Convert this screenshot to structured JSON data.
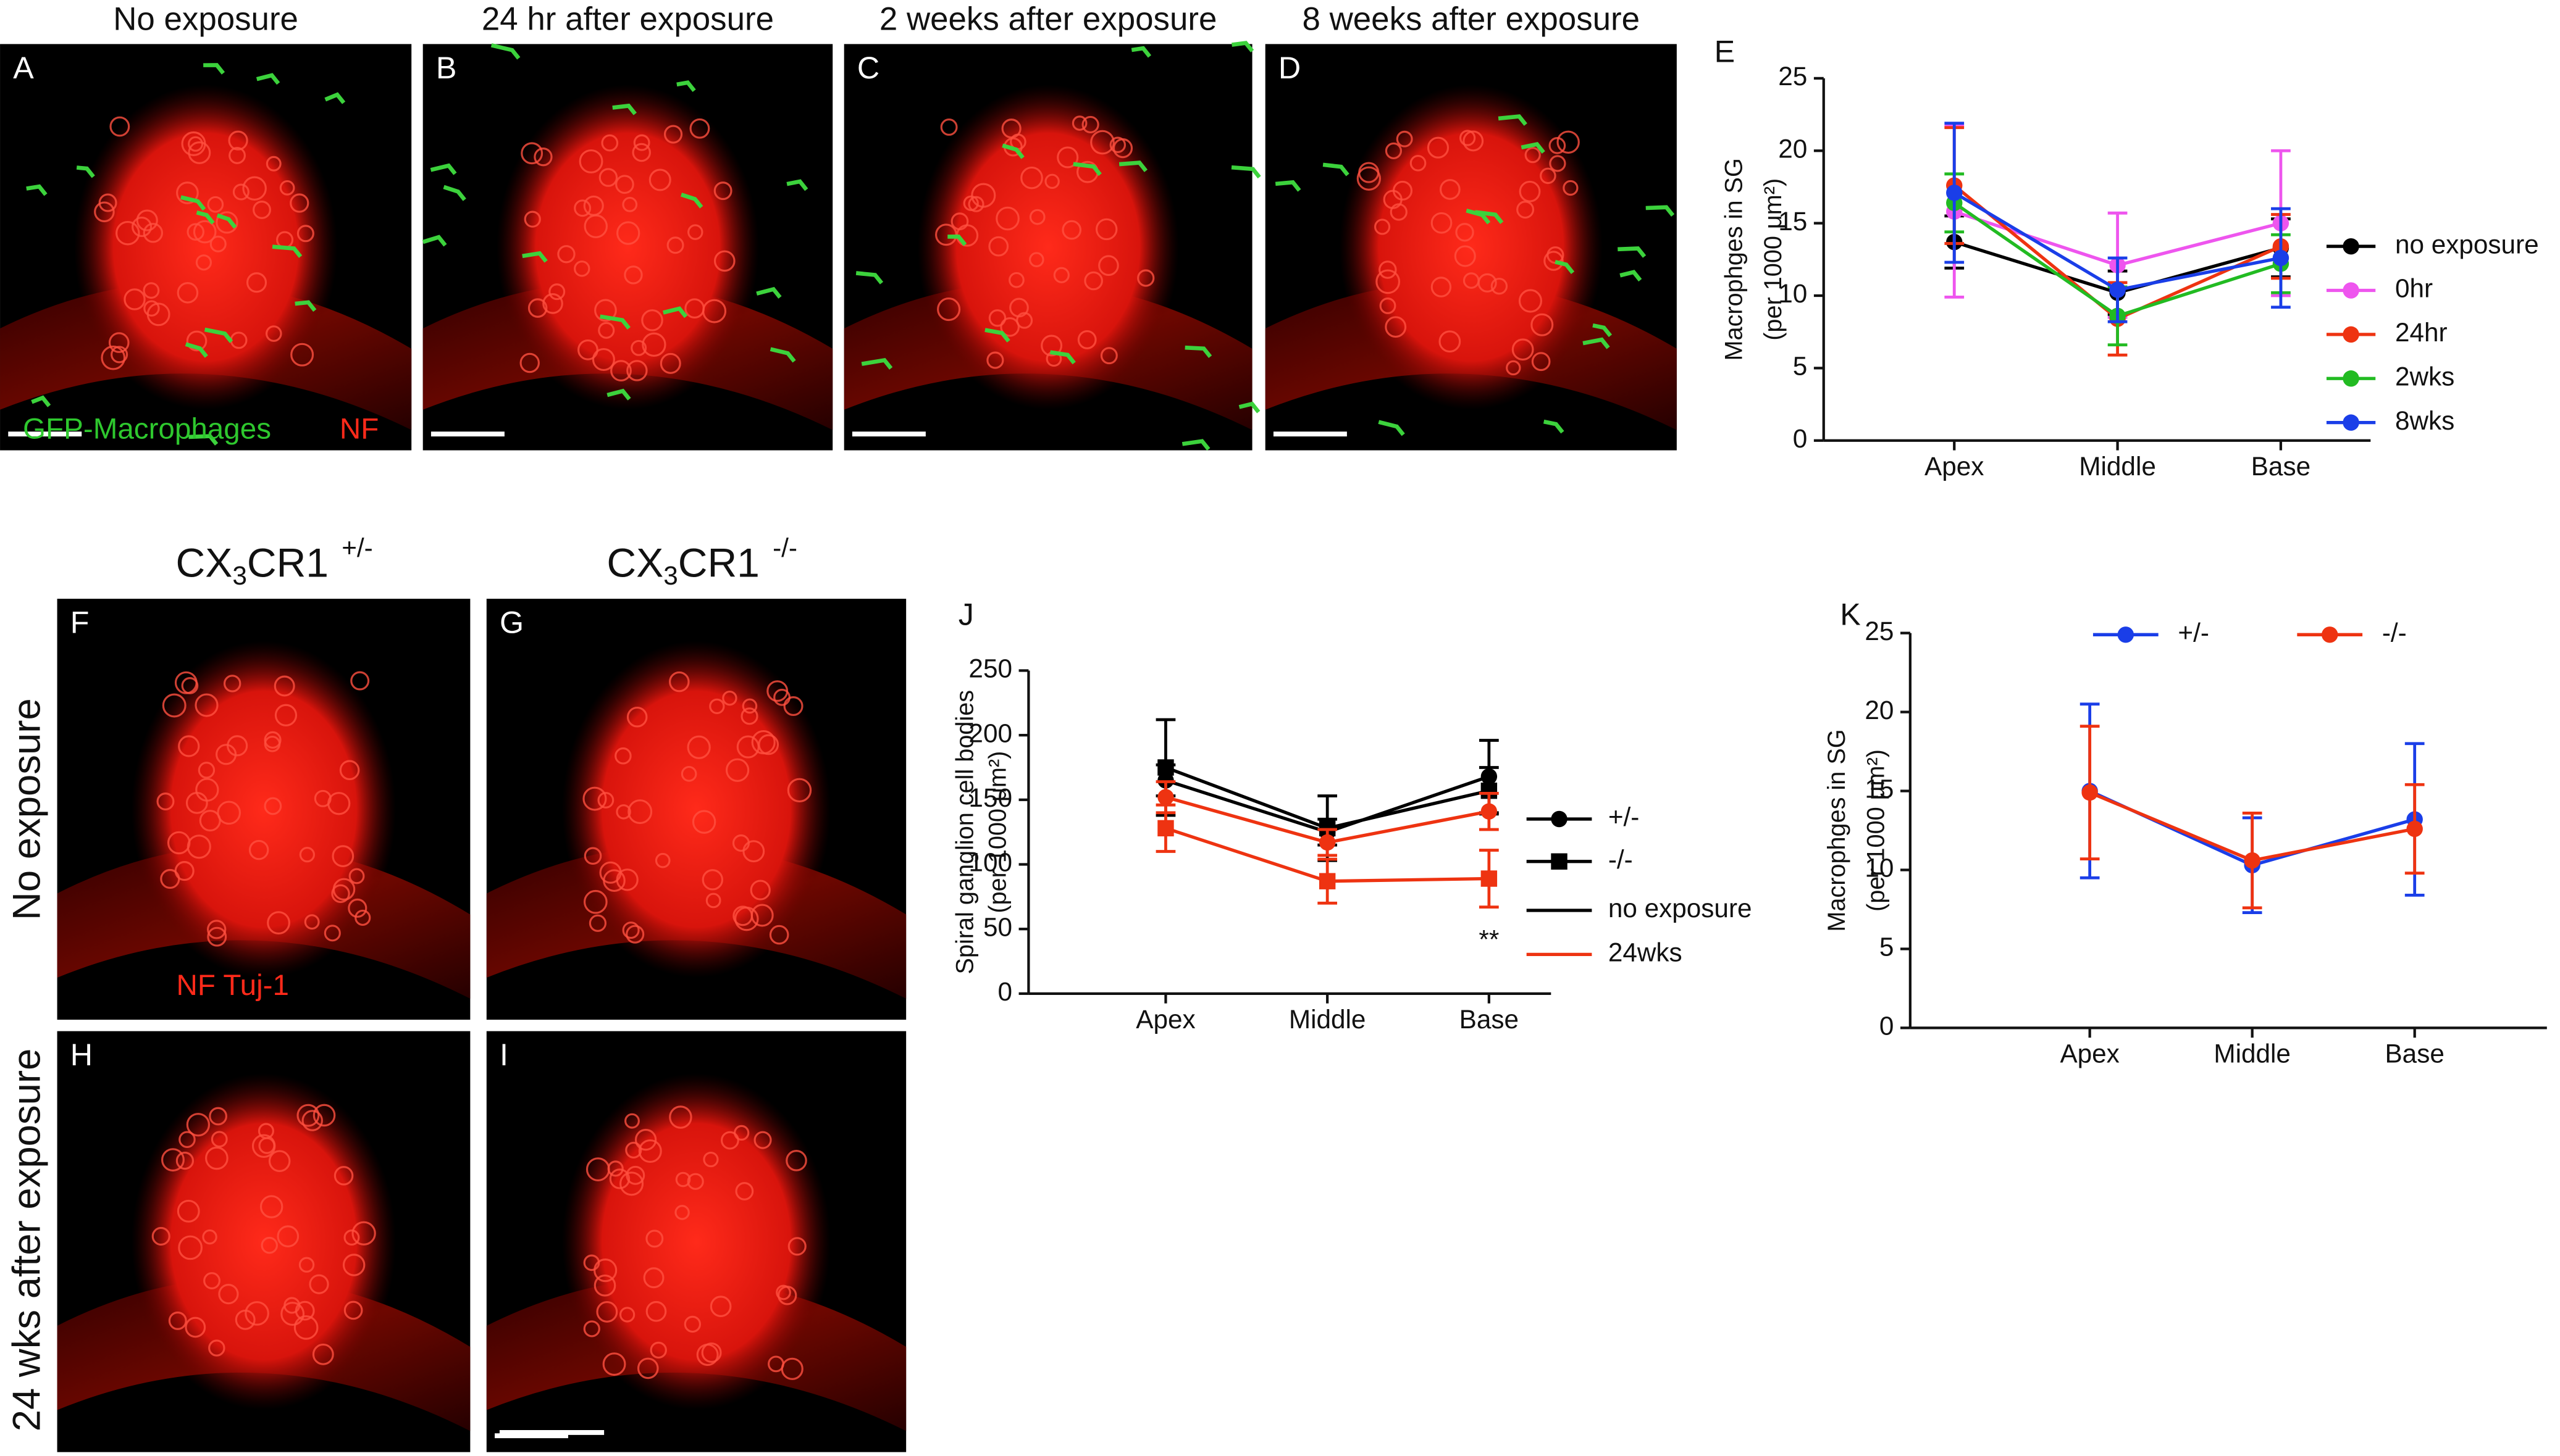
{
  "panels": [
    {
      "label": "A",
      "title": "No exposure"
    },
    {
      "label": "B",
      "title": "24 hr after exposure"
    },
    {
      "label": "C",
      "title": "2 weeks after exposure"
    },
    {
      "label": "D",
      "title": "8 weeks after exposure"
    },
    {
      "label": "F"
    },
    {
      "label": "G"
    },
    {
      "label": "H"
    },
    {
      "label": "I"
    }
  ],
  "image_annotations": {
    "green": "GFP-Macrophages",
    "red": "NF",
    "stain": "NF Tuj-1"
  },
  "column_titles": [
    {
      "base": "CX",
      "sub": "3",
      "rest": "CR1",
      "sup": "+/-"
    },
    {
      "base": "CX",
      "sub": "3",
      "rest": "CR1",
      "sup": "-/-"
    }
  ],
  "row_titles": [
    "No exposure",
    "24 wks after exposure"
  ],
  "chart_data": [
    {
      "type": "line",
      "panel_label": "E",
      "y_label": [
        "Macrophges in SG",
        "(per 1000 μm²)"
      ],
      "categories": [
        "Apex",
        "Middle",
        "Base"
      ],
      "ylim": [
        0,
        25
      ],
      "yticks": [
        0,
        5,
        10,
        15,
        20,
        25
      ],
      "legend_position": "right",
      "series": [
        {
          "name": "no exposure",
          "color": "#000000",
          "marker": "circle",
          "values": [
            13.7,
            10.2,
            13.3
          ],
          "errors": [
            1.8,
            1.5,
            2.0
          ]
        },
        {
          "name": "0hr",
          "color": "#ee55ee",
          "marker": "circle",
          "values": [
            15.8,
            12.1,
            15.0
          ],
          "errors": [
            5.9,
            3.6,
            5.0
          ]
        },
        {
          "name": "24hr",
          "color": "#ee3311",
          "marker": "circle",
          "values": [
            17.6,
            8.4,
            13.4
          ],
          "errors": [
            4.0,
            2.5,
            2.2
          ]
        },
        {
          "name": "2wks",
          "color": "#22bb22",
          "marker": "circle",
          "values": [
            16.4,
            8.6,
            12.2
          ],
          "errors": [
            2.0,
            2.0,
            2.0
          ]
        },
        {
          "name": "8wks",
          "color": "#1a3ee8",
          "marker": "circle",
          "values": [
            17.1,
            10.4,
            12.6
          ],
          "errors": [
            4.8,
            2.2,
            3.4
          ]
        }
      ]
    },
    {
      "type": "line",
      "panel_label": "J",
      "y_label": [
        "Spiral ganglion cell bodies",
        "(per 1000 μm²)"
      ],
      "categories": [
        "Apex",
        "Middle",
        "Base"
      ],
      "ylim": [
        0,
        250
      ],
      "yticks": [
        0,
        50,
        100,
        150,
        200,
        250
      ],
      "legend": [
        {
          "label": "+/-",
          "marker": "circle",
          "color": "#000000"
        },
        {
          "label": "-/-",
          "marker": "square",
          "color": "#000000"
        },
        {
          "label": "no exposure",
          "marker": "line",
          "color": "#000000"
        },
        {
          "label": "24wks",
          "marker": "line",
          "color": "#ee3311"
        }
      ],
      "annotation": "**",
      "series": [
        {
          "color": "#000000",
          "marker": "circle",
          "values": [
            165,
            125,
            168
          ],
          "errors": [
            12,
            10,
            28
          ]
        },
        {
          "color": "#000000",
          "marker": "square",
          "values": [
            175,
            128,
            157
          ],
          "errors": [
            37,
            25,
            18
          ]
        },
        {
          "color": "#ee3311",
          "marker": "circle",
          "values": [
            152,
            117,
            141
          ],
          "errors": [
            12,
            10,
            14
          ]
        },
        {
          "color": "#ee3311",
          "marker": "square",
          "values": [
            128,
            87,
            89
          ],
          "errors": [
            18,
            17,
            22
          ]
        }
      ]
    },
    {
      "type": "line",
      "panel_label": "K",
      "y_label": [
        "Macrophges in SG",
        "(per 1000 μm²)"
      ],
      "categories": [
        "Apex",
        "Middle",
        "Base"
      ],
      "ylim": [
        0,
        25
      ],
      "yticks": [
        0,
        5,
        10,
        15,
        20,
        25
      ],
      "legend_position": "top",
      "series": [
        {
          "name": "+/-",
          "color": "#1a3ee8",
          "marker": "circle",
          "values": [
            15.0,
            10.3,
            13.2
          ],
          "errors": [
            5.5,
            3.0,
            4.8
          ]
        },
        {
          "name": "-/-",
          "color": "#ee3311",
          "marker": "circle",
          "values": [
            14.9,
            10.6,
            12.6
          ],
          "errors": [
            4.2,
            3.0,
            2.8
          ]
        }
      ]
    }
  ]
}
